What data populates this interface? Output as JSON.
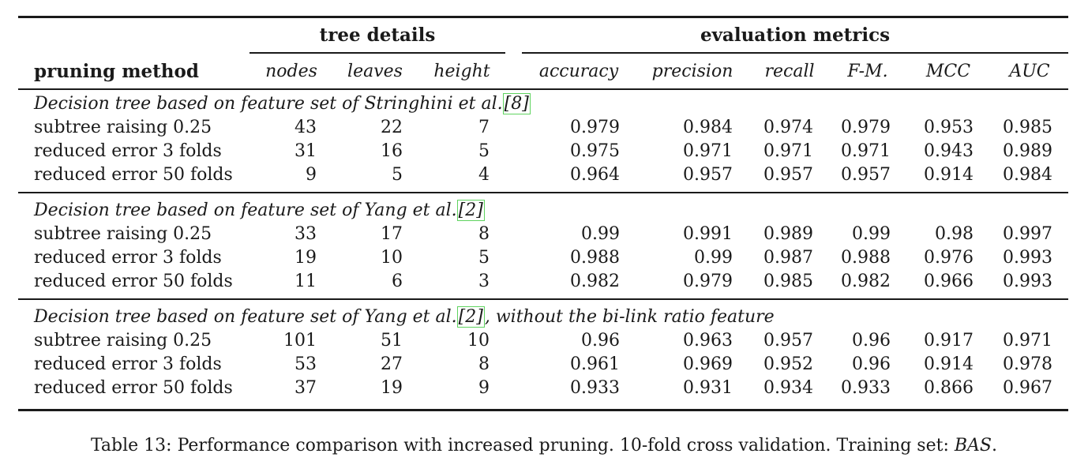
{
  "headers": {
    "group_tree": "tree details",
    "group_eval": "evaluation metrics",
    "method": "pruning method",
    "cols": [
      "nodes",
      "leaves",
      "height",
      "accuracy",
      "precision",
      "recall",
      "F-M.",
      "MCC",
      "AUC"
    ]
  },
  "sections": [
    {
      "title_pre": "Decision tree based on feature set of Stringhini et al.",
      "ref": "8",
      "title_post": "",
      "rows": [
        [
          "subtree raising 0.25",
          "43",
          "22",
          "7",
          "0.979",
          "0.984",
          "0.974",
          "0.979",
          "0.953",
          "0.985"
        ],
        [
          "reduced error 3 folds",
          "31",
          "16",
          "5",
          "0.975",
          "0.971",
          "0.971",
          "0.971",
          "0.943",
          "0.989"
        ],
        [
          "reduced error 50 folds",
          "9",
          "5",
          "4",
          "0.964",
          "0.957",
          "0.957",
          "0.957",
          "0.914",
          "0.984"
        ]
      ]
    },
    {
      "title_pre": "Decision tree based on feature set of Yang et al.",
      "ref": "2",
      "title_post": "",
      "rows": [
        [
          "subtree raising 0.25",
          "33",
          "17",
          "8",
          "0.99",
          "0.991",
          "0.989",
          "0.99",
          "0.98",
          "0.997"
        ],
        [
          "reduced error 3 folds",
          "19",
          "10",
          "5",
          "0.988",
          "0.99",
          "0.987",
          "0.988",
          "0.976",
          "0.993"
        ],
        [
          "reduced error 50 folds",
          "11",
          "6",
          "3",
          "0.982",
          "0.979",
          "0.985",
          "0.982",
          "0.966",
          "0.993"
        ]
      ]
    },
    {
      "title_pre": "Decision tree based on feature set of Yang et al.",
      "ref": "2",
      "title_post": ", without the bi-link ratio feature",
      "rows": [
        [
          "subtree raising 0.25",
          "101",
          "51",
          "10",
          "0.96",
          "0.963",
          "0.957",
          "0.96",
          "0.917",
          "0.971"
        ],
        [
          "reduced error 3 folds",
          "53",
          "27",
          "8",
          "0.961",
          "0.969",
          "0.952",
          "0.96",
          "0.914",
          "0.978"
        ],
        [
          "reduced error 50 folds",
          "37",
          "19",
          "9",
          "0.933",
          "0.931",
          "0.934",
          "0.933",
          "0.866",
          "0.967"
        ]
      ]
    }
  ],
  "caption": {
    "text": "Table 13: Performance comparison with increased pruning. 10-fold cross validation. Training set: ",
    "set_name": "BAS",
    "end": "."
  }
}
